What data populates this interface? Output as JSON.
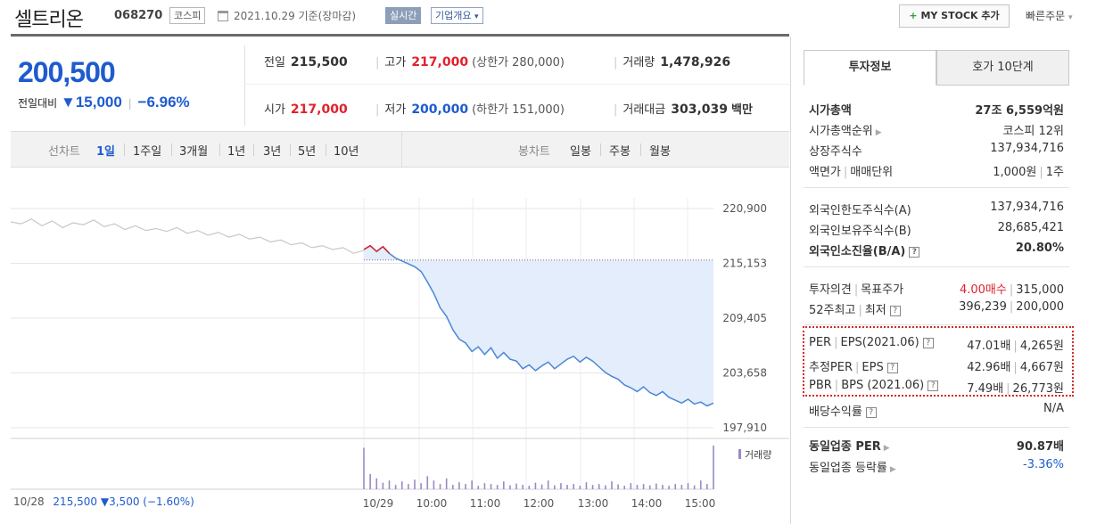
{
  "header": {
    "stock_name": "셀트리온",
    "stock_code": "068270",
    "market": "코스피",
    "date_text": "2021.10.29 기준(장마감)",
    "realtime": "실시간",
    "overview": "기업개요",
    "overview_caret": "▾",
    "mystock_plus": "+",
    "mystock": "MY STOCK 추가",
    "quick_order": "빠른주문",
    "quick_caret": "▾"
  },
  "price": {
    "current": "200,500",
    "change_label": "전일대비",
    "change_value": "▼15,000",
    "change_pct": "−6.96%",
    "prev_close_label": "전일",
    "prev_close": "215,500",
    "high_label": "고가",
    "high": "217,000",
    "upper_limit": "(상한가 280,000)",
    "volume_label": "거래량",
    "volume": "1,478,926",
    "open_label": "시가",
    "open": "217,000",
    "low_label": "저가",
    "low": "200,000",
    "lower_limit": "(하한가 151,000)",
    "amount_label": "거래대금",
    "amount": "303,039",
    "amount_unit": "백만"
  },
  "period_bar": {
    "line_label": "선차트",
    "line_periods": [
      "1일",
      "1주일",
      "3개월",
      "1년",
      "3년",
      "5년",
      "10년"
    ],
    "active_line_period": "1일",
    "candle_label": "봉차트",
    "candle_periods": [
      "일봉",
      "주봉",
      "월봉"
    ]
  },
  "chart_data": {
    "type": "line",
    "x_date_labels": [
      "10/28",
      "10/29"
    ],
    "x_time_labels": [
      "10:00",
      "11:00",
      "12:00",
      "13:00",
      "14:00",
      "15:00"
    ],
    "y_ticks": [
      220900,
      215153,
      209405,
      203658,
      197910
    ],
    "y_tick_labels": [
      "220,900",
      "215,153",
      "209,405",
      "203,658",
      "197,910"
    ],
    "ylim": [
      197910,
      220900
    ],
    "reference_price": 215500,
    "prev_day_series": [
      219500,
      219300,
      219800,
      219100,
      219600,
      218900,
      219400,
      219200,
      219700,
      219000,
      219300,
      218700,
      219100,
      218600,
      218800,
      218500,
      218900,
      218300,
      218600,
      218100,
      218400,
      217900,
      218200,
      217700,
      217900,
      217400,
      217600,
      217100,
      217300,
      216800,
      217000,
      216600,
      216800,
      216200,
      216500
    ],
    "today_series": [
      216600,
      217000,
      216400,
      216900,
      216200,
      215700,
      215400,
      215100,
      214800,
      214300,
      213200,
      212000,
      210500,
      209600,
      208200,
      207200,
      206800,
      205900,
      206400,
      205600,
      206300,
      205200,
      205800,
      205100,
      204900,
      204100,
      204500,
      203900,
      204400,
      204800,
      204100,
      204600,
      205100,
      205400,
      204800,
      205300,
      204900,
      204300,
      203700,
      203300,
      203000,
      202400,
      202100,
      201700,
      202200,
      201600,
      201300,
      201700,
      201100,
      200800,
      200500,
      200900,
      200400,
      200600,
      200200,
      200500
    ],
    "volume_today": [
      0.95,
      0.35,
      0.25,
      0.15,
      0.2,
      0.1,
      0.18,
      0.12,
      0.22,
      0.14,
      0.3,
      0.2,
      0.12,
      0.25,
      0.1,
      0.16,
      0.12,
      0.2,
      0.08,
      0.14,
      0.12,
      0.1,
      0.18,
      0.09,
      0.13,
      0.1,
      0.08,
      0.15,
      0.11,
      0.2,
      0.09,
      0.14,
      0.1,
      0.12,
      0.08,
      0.16,
      0.1,
      0.12,
      0.09,
      0.18,
      0.11,
      0.08,
      0.14,
      0.1,
      0.12,
      0.09,
      0.13,
      0.1,
      0.08,
      0.12,
      0.1,
      0.14,
      0.09,
      0.2,
      0.12,
      1.0
    ],
    "legend": "거래량",
    "colors": {
      "line_prev": "#c8c8c8",
      "line_today": "#4a86d8",
      "fill": "#e3edfb",
      "volume": "#9b88c8",
      "up": "#e0222d"
    }
  },
  "chart_footer": {
    "prev_date": "10/28",
    "prev_price": "215,500",
    "prev_change": "▼3,500",
    "prev_pct": "(−1.60%)"
  },
  "sidebar": {
    "tab_invest": "투자정보",
    "tab_quote": "호가 10단계",
    "market_cap_label": "시가총액",
    "market_cap": "27조 6,559억원",
    "rank_label": "시가총액순위",
    "rank": "코스피 12위",
    "shares_label": "상장주식수",
    "shares": "137,934,716",
    "par_label": "액면가",
    "lot_label": "매매단위",
    "par": "1,000원",
    "lot": "1주",
    "foreign_limit_label": "외국인한도주식수(A)",
    "foreign_limit": "137,934,716",
    "foreign_hold_label": "외국인보유주식수(B)",
    "foreign_hold": "28,685,421",
    "foreign_ratio_label": "외국인소진율(B/A)",
    "foreign_ratio": "20.80%",
    "opinion_label": "투자의견",
    "target_label": "목표주가",
    "opinion": "4.00매수",
    "target": "315,000",
    "w52_label": "52주최고",
    "w52_low_label": "최저",
    "w52_high": "396,239",
    "w52_low": "200,000",
    "per_label": "PER",
    "eps_label": "EPS(2021.06)",
    "per": "47.01배",
    "eps": "4,265원",
    "est_per_label": "추정PER",
    "est_eps_label": "EPS",
    "est_per": "42.96배",
    "est_eps": "4,667원",
    "pbr_label": "PBR",
    "bps_label": "BPS (2021.06)",
    "pbr": "7.49배",
    "bps": "26,773원",
    "div_label": "배당수익률",
    "div": "N/A",
    "ind_per_label": "동일업종 PER",
    "ind_per": "90.87배",
    "ind_rate_label": "동일업종 등락률",
    "ind_rate": "-3.36%",
    "pipe": "|",
    "q": "?"
  }
}
